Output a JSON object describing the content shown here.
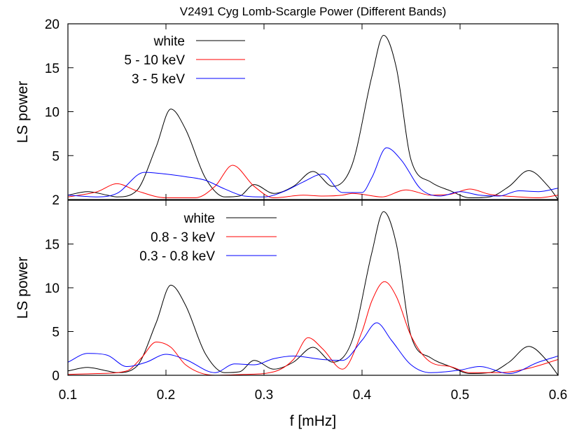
{
  "chart_data": [
    {
      "type": "line",
      "title": "V2491 Cyg Lomb-Scargle Power (Different Bands)",
      "xlabel": "",
      "ylabel": "LS power",
      "xlim": [
        0.1,
        0.6
      ],
      "ylim": [
        0,
        20
      ],
      "yticks": [
        "20",
        "15",
        "10",
        "5",
        "2"
      ],
      "legend_position": "top-left",
      "series": [
        {
          "name": "white",
          "color": "#000000",
          "x": [
            0.1,
            0.12,
            0.14,
            0.15,
            0.17,
            0.19,
            0.205,
            0.22,
            0.24,
            0.26,
            0.275,
            0.29,
            0.31,
            0.33,
            0.35,
            0.37,
            0.39,
            0.41,
            0.422,
            0.435,
            0.45,
            0.47,
            0.49,
            0.51,
            0.53,
            0.55,
            0.57,
            0.59,
            0.6
          ],
          "y": [
            0.5,
            0.9,
            0.5,
            0.3,
            1.0,
            6.0,
            10.3,
            8.0,
            2.5,
            0.3,
            0.4,
            1.7,
            0.7,
            1.5,
            3.2,
            1.5,
            4.0,
            14.0,
            18.7,
            15.0,
            4.5,
            2.0,
            1.0,
            0.2,
            0.3,
            1.5,
            3.3,
            1.5,
            0.0
          ]
        },
        {
          "name": "5 - 10 keV",
          "color": "#ff0000",
          "x": [
            0.1,
            0.13,
            0.15,
            0.17,
            0.2,
            0.23,
            0.25,
            0.268,
            0.29,
            0.31,
            0.34,
            0.36,
            0.38,
            0.39,
            0.4,
            0.42,
            0.445,
            0.47,
            0.49,
            0.51,
            0.53,
            0.56,
            0.58,
            0.6
          ],
          "y": [
            0.3,
            0.9,
            1.8,
            1.0,
            0.2,
            0.2,
            1.5,
            3.9,
            1.5,
            0.2,
            0.5,
            0.4,
            0.5,
            0.7,
            0.6,
            0.3,
            1.1,
            0.5,
            0.6,
            1.2,
            0.6,
            0.3,
            0.2,
            0.5
          ]
        },
        {
          "name": "3 - 5 keV",
          "color": "#0000ff",
          "x": [
            0.1,
            0.13,
            0.15,
            0.178,
            0.2,
            0.22,
            0.24,
            0.26,
            0.28,
            0.3,
            0.32,
            0.34,
            0.36,
            0.38,
            0.4,
            0.41,
            0.425,
            0.44,
            0.46,
            0.48,
            0.5,
            0.52,
            0.54,
            0.56,
            0.58,
            0.6
          ],
          "y": [
            0.5,
            0.3,
            0.7,
            3.1,
            2.9,
            2.6,
            2.2,
            1.2,
            0.4,
            0.3,
            0.9,
            2.0,
            2.9,
            0.8,
            0.8,
            2.5,
            5.9,
            4.5,
            1.2,
            0.4,
            0.9,
            0.5,
            0.4,
            1.0,
            0.9,
            1.3
          ]
        }
      ]
    },
    {
      "type": "line",
      "title": "",
      "xlabel": "f [mHz]",
      "ylabel": "LS power",
      "xlim": [
        0.1,
        0.6
      ],
      "ylim": [
        0,
        20
      ],
      "xticks": [
        "0.1",
        "0.2",
        "0.3",
        "0.4",
        "0.5",
        "0.6"
      ],
      "yticks": [
        "15",
        "10",
        "5",
        "0"
      ],
      "legend_position": "top-left",
      "series": [
        {
          "name": "white",
          "color": "#000000",
          "x": [
            0.1,
            0.12,
            0.14,
            0.15,
            0.17,
            0.19,
            0.205,
            0.22,
            0.24,
            0.26,
            0.275,
            0.29,
            0.31,
            0.33,
            0.35,
            0.37,
            0.39,
            0.41,
            0.422,
            0.435,
            0.45,
            0.47,
            0.49,
            0.51,
            0.53,
            0.55,
            0.57,
            0.59,
            0.6
          ],
          "y": [
            0.5,
            0.9,
            0.5,
            0.3,
            1.0,
            6.0,
            10.3,
            8.0,
            2.5,
            0.3,
            0.4,
            1.7,
            0.7,
            1.5,
            3.2,
            1.5,
            4.0,
            14.0,
            18.7,
            15.0,
            4.5,
            2.0,
            1.0,
            0.2,
            0.3,
            1.5,
            3.3,
            1.5,
            0.0
          ]
        },
        {
          "name": "0.8 - 3 keV",
          "color": "#ff0000",
          "x": [
            0.1,
            0.13,
            0.16,
            0.175,
            0.19,
            0.205,
            0.22,
            0.25,
            0.28,
            0.31,
            0.33,
            0.345,
            0.36,
            0.38,
            0.4,
            0.41,
            0.423,
            0.435,
            0.45,
            0.47,
            0.49,
            0.51,
            0.54,
            0.57,
            0.6
          ],
          "y": [
            0.1,
            0.2,
            0.5,
            2.0,
            3.8,
            3.2,
            1.2,
            0.0,
            0.1,
            0.4,
            1.8,
            4.3,
            3.0,
            0.7,
            5.0,
            8.5,
            10.7,
            9.0,
            4.5,
            1.5,
            1.0,
            0.3,
            0.3,
            0.8,
            1.8
          ]
        },
        {
          "name": "0.3 - 0.8 keV",
          "color": "#0000ff",
          "x": [
            0.1,
            0.12,
            0.14,
            0.16,
            0.18,
            0.2,
            0.22,
            0.25,
            0.27,
            0.29,
            0.31,
            0.33,
            0.36,
            0.38,
            0.4,
            0.415,
            0.43,
            0.45,
            0.47,
            0.5,
            0.52,
            0.55,
            0.58,
            0.6
          ],
          "y": [
            1.5,
            2.5,
            2.3,
            1.0,
            1.5,
            2.4,
            1.8,
            0.3,
            1.3,
            1.2,
            1.9,
            2.2,
            1.8,
            1.7,
            4.0,
            6.0,
            4.0,
            1.2,
            0.3,
            0.6,
            1.0,
            0.2,
            1.5,
            2.2
          ]
        }
      ]
    }
  ]
}
